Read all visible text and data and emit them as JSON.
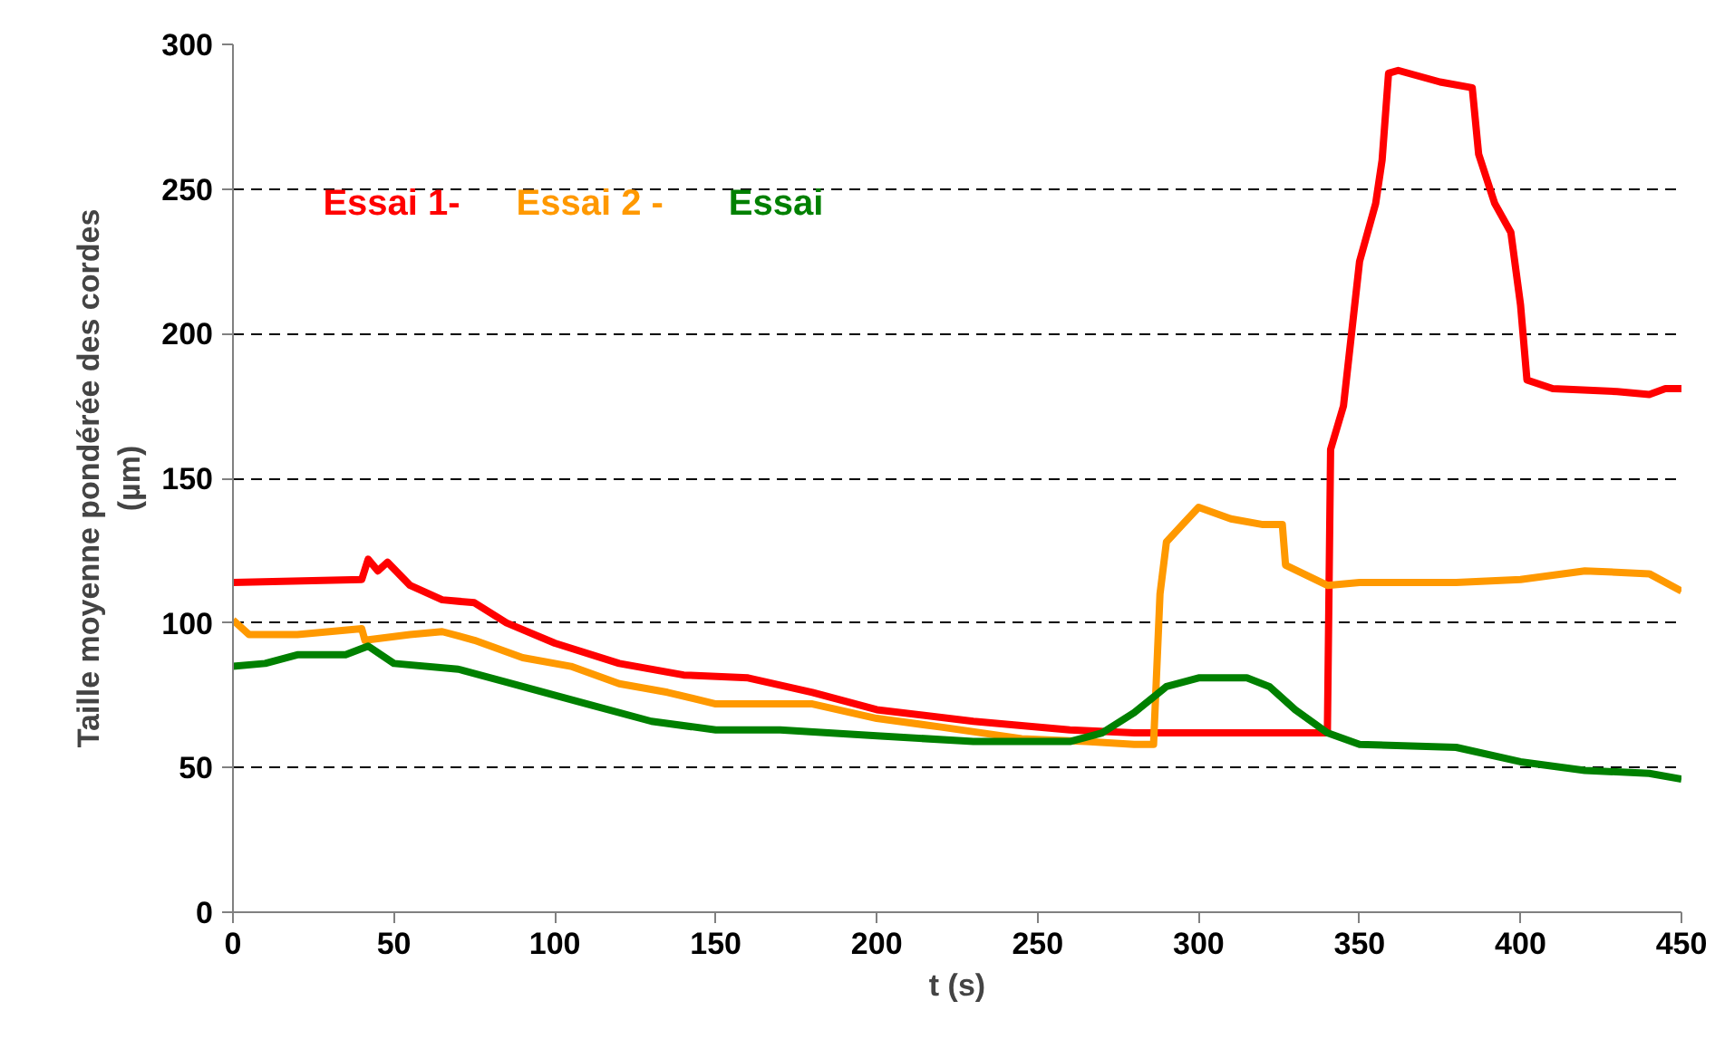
{
  "chart_data": {
    "type": "line",
    "xlabel": "t (s)",
    "ylabel": "Taille moyenne pondérée des cordes\n(µm)",
    "xlim": [
      0,
      450
    ],
    "ylim": [
      0,
      300
    ],
    "xticks": [
      0,
      50,
      100,
      150,
      200,
      250,
      300,
      350,
      400,
      450
    ],
    "yticks": [
      0,
      50,
      100,
      150,
      200,
      250,
      300
    ],
    "grid": "y",
    "legend": "top left",
    "line_style": "solid",
    "marker": "none",
    "series": [
      {
        "name": "Essai 1-",
        "color": "#ff0000",
        "x": [
          0,
          40,
          42,
          45,
          48,
          55,
          65,
          75,
          85,
          100,
          120,
          140,
          160,
          180,
          200,
          230,
          260,
          280,
          340,
          341,
          345,
          350,
          355,
          357,
          359,
          362,
          375,
          385,
          387,
          392,
          397,
          400,
          402,
          410,
          430,
          440,
          445,
          450
        ],
        "values": [
          114,
          115,
          122,
          118,
          121,
          113,
          108,
          107,
          100,
          93,
          86,
          82,
          81,
          76,
          70,
          66,
          63,
          62,
          62,
          160,
          175,
          225,
          245,
          260,
          290,
          291,
          287,
          285,
          262,
          245,
          235,
          210,
          184,
          181,
          180,
          179,
          181,
          181
        ]
      },
      {
        "name": "Essai 2 -",
        "color": "#ff9900",
        "x": [
          0,
          5,
          20,
          40,
          41,
          55,
          65,
          75,
          90,
          105,
          120,
          135,
          150,
          180,
          200,
          220,
          245,
          265,
          280,
          286,
          288,
          290,
          295,
          300,
          310,
          320,
          326,
          327,
          340,
          350,
          380,
          400,
          420,
          440,
          450
        ],
        "values": [
          101,
          96,
          96,
          98,
          94,
          96,
          97,
          94,
          88,
          85,
          79,
          76,
          72,
          72,
          67,
          64,
          60,
          59,
          58,
          58,
          110,
          128,
          134,
          140,
          136,
          134,
          134,
          120,
          113,
          114,
          114,
          115,
          118,
          117,
          111
        ]
      },
      {
        "name": "Essai",
        "color": "#008000",
        "x": [
          0,
          10,
          20,
          35,
          42,
          50,
          70,
          90,
          110,
          130,
          150,
          170,
          200,
          230,
          260,
          270,
          280,
          290,
          300,
          315,
          322,
          330,
          340,
          350,
          380,
          400,
          420,
          440,
          450
        ],
        "values": [
          85,
          86,
          89,
          89,
          92,
          86,
          84,
          78,
          72,
          66,
          63,
          63,
          61,
          59,
          59,
          62,
          69,
          78,
          81,
          81,
          78,
          70,
          62,
          58,
          57,
          52,
          49,
          48,
          46
        ]
      }
    ]
  }
}
